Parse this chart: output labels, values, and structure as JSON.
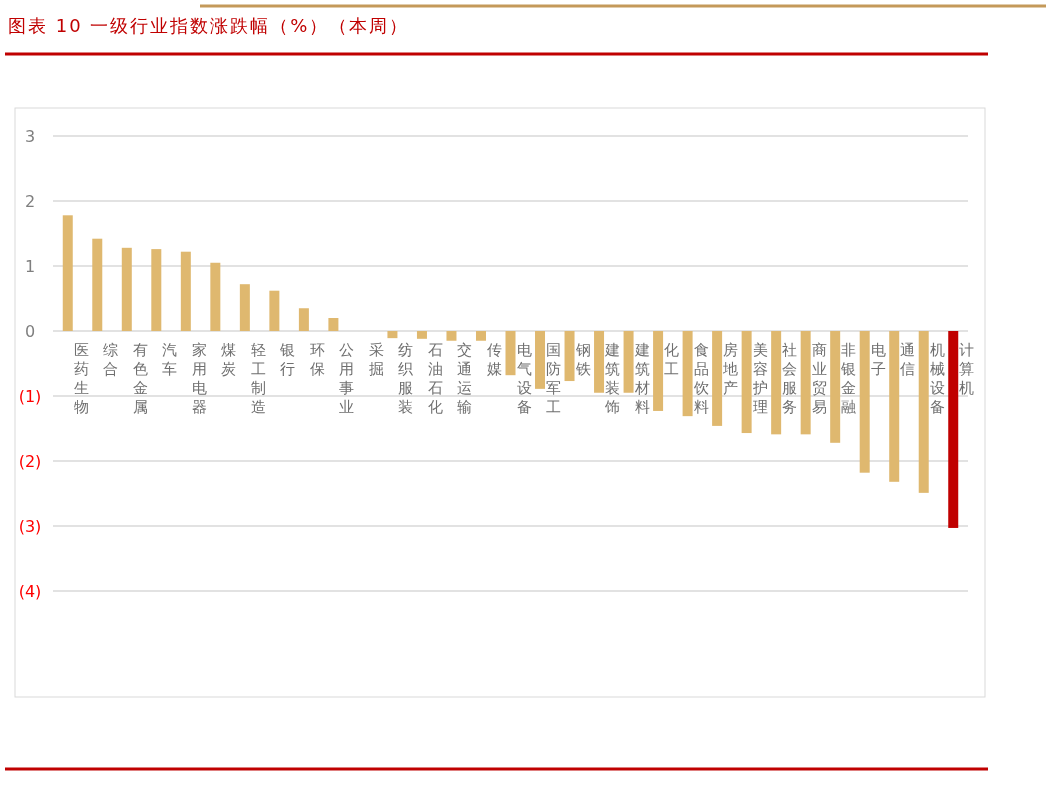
{
  "chart_data": {
    "type": "bar",
    "title": "图表 10 一级行业指数涨跌幅（%）（本周）",
    "categories": [
      "医药生物",
      "综合",
      "有色金属",
      "汽车",
      "家用电器",
      "煤炭",
      "轻工制造",
      "银行",
      "环保",
      "公用事业",
      "采掘",
      "纺织服装",
      "石油石化",
      "交通运输",
      "传媒",
      "电气设备",
      "国防军工",
      "钢铁",
      "建筑装饰",
      "建筑材料",
      "化工",
      "食品饮料",
      "房地产",
      "美容护理",
      "社会服务",
      "商业贸易",
      "非银金融",
      "电子",
      "通信",
      "机械设备",
      "计算机"
    ],
    "values": [
      1.78,
      1.42,
      1.28,
      1.26,
      1.22,
      1.05,
      0.72,
      0.62,
      0.35,
      0.2,
      0,
      -0.11,
      -0.12,
      -0.15,
      -0.15,
      -0.68,
      -0.89,
      -0.77,
      -0.95,
      -0.95,
      -1.23,
      -1.31,
      -1.46,
      -1.57,
      -1.59,
      -1.59,
      -1.72,
      -2.18,
      -2.32,
      -2.49,
      -3.03
    ],
    "colors": [
      "#dfb86f",
      "#dfb86f",
      "#dfb86f",
      "#dfb86f",
      "#dfb86f",
      "#dfb86f",
      "#dfb86f",
      "#dfb86f",
      "#dfb86f",
      "#dfb86f",
      "#dfb86f",
      "#dfb86f",
      "#dfb86f",
      "#dfb86f",
      "#dfb86f",
      "#dfb86f",
      "#dfb86f",
      "#dfb86f",
      "#dfb86f",
      "#dfb86f",
      "#dfb86f",
      "#dfb86f",
      "#dfb86f",
      "#dfb86f",
      "#dfb86f",
      "#dfb86f",
      "#dfb86f",
      "#dfb86f",
      "#dfb86f",
      "#dfb86f",
      "#c00000"
    ],
    "ylim": [
      -5.6,
      3.4
    ],
    "yticks": [
      3,
      2,
      1,
      0,
      {
        "value": -1,
        "label": "(1)"
      },
      {
        "value": -2,
        "label": "(2)"
      },
      {
        "value": -3,
        "label": "(3)"
      },
      {
        "value": -4,
        "label": "(4)"
      }
    ],
    "grid": "y"
  }
}
